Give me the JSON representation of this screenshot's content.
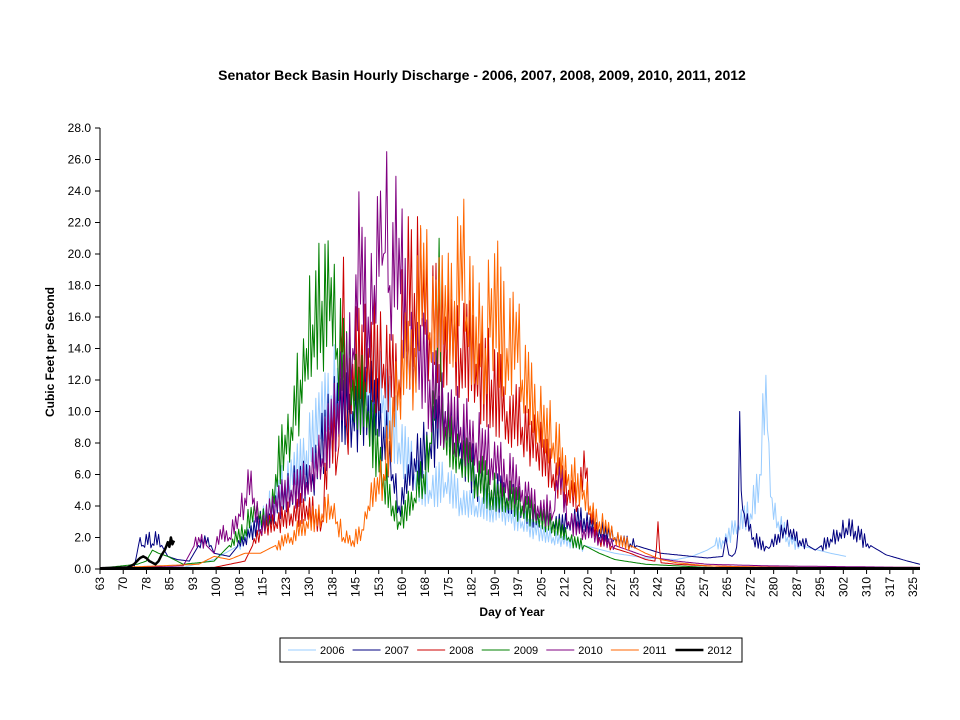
{
  "chart_data": {
    "type": "line",
    "title": "Senator Beck Basin Hourly Discharge - 2006, 2007, 2008, 2009, 2010, 2011, 2012",
    "xlabel": "Day of Year",
    "ylabel": "Cubic Feet per Second",
    "xlim": [
      63,
      329
    ],
    "ylim": [
      0,
      28
    ],
    "x_ticks": [
      "63",
      "70",
      "78",
      "85",
      "93",
      "100",
      "108",
      "115",
      "123",
      "130",
      "138",
      "145",
      "153",
      "160",
      "168",
      "175",
      "182",
      "190",
      "197",
      "205",
      "212",
      "220",
      "227",
      "235",
      "242",
      "250",
      "257",
      "265",
      "272",
      "280",
      "287",
      "295",
      "302",
      "310",
      "317",
      "325"
    ],
    "y_ticks": [
      "0.0",
      "2.0",
      "4.0",
      "6.0",
      "8.0",
      "10.0",
      "12.0",
      "14.0",
      "16.0",
      "18.0",
      "20.0",
      "22.0",
      "24.0",
      "26.0",
      "28.0"
    ],
    "grid": false,
    "legend_position": "bottom",
    "series": [
      {
        "name": "2006",
        "color": "#99ccff",
        "width": 1,
        "x": [
          63,
          90,
          100,
          108,
          115,
          123,
          130,
          138,
          145,
          150,
          155,
          160,
          165,
          170,
          175,
          180,
          185,
          190,
          200,
          210,
          220,
          230,
          240,
          250,
          255,
          260,
          265,
          270,
          274,
          277,
          279,
          280,
          281,
          283,
          286,
          290,
          300,
          305
        ],
        "y": [
          0.05,
          0.1,
          0.6,
          1.5,
          3.0,
          5.5,
          7.5,
          11.0,
          12.5,
          13.0,
          11.0,
          8.0,
          6.0,
          5.0,
          5.5,
          4.5,
          4.0,
          4.0,
          3.0,
          2.0,
          1.5,
          1.0,
          0.7,
          0.6,
          0.8,
          1.2,
          1.8,
          2.8,
          3.5,
          6.0,
          12.3,
          8.0,
          4.5,
          3.0,
          2.0,
          1.5,
          1.0,
          0.8
        ]
      },
      {
        "name": "2007",
        "color": "#000080",
        "width": 1,
        "x": [
          63,
          74,
          75,
          76,
          77,
          78,
          80,
          82,
          83,
          85,
          88,
          92,
          95,
          98,
          100,
          105,
          110,
          118,
          125,
          132,
          138,
          145,
          150,
          155,
          158,
          160,
          165,
          170,
          175,
          180,
          185,
          190,
          195,
          200,
          205,
          210,
          215,
          220,
          225,
          230,
          235,
          240,
          245,
          250,
          255,
          260,
          265,
          266,
          267,
          268,
          269,
          270,
          270.5,
          271,
          272,
          275,
          280,
          283,
          285,
          287,
          290,
          295,
          300,
          303,
          305,
          308,
          312,
          318,
          325,
          329
        ],
        "y": [
          0.05,
          0.05,
          1.0,
          2.0,
          1.5,
          2.2,
          1.6,
          2.2,
          1.5,
          0.8,
          0.6,
          0.5,
          1.5,
          2.0,
          1.0,
          0.8,
          2.0,
          3.5,
          5.0,
          6.0,
          9.5,
          10.0,
          11.0,
          9.0,
          6.0,
          4.0,
          7.0,
          8.0,
          10.0,
          8.0,
          6.0,
          5.0,
          4.5,
          4.0,
          3.5,
          3.0,
          3.0,
          3.2,
          2.5,
          2.0,
          1.6,
          1.3,
          1.0,
          0.9,
          0.8,
          0.7,
          0.8,
          2.0,
          0.9,
          0.8,
          1.0,
          2.5,
          10.0,
          5.0,
          3.5,
          2.0,
          1.3,
          2.2,
          2.6,
          2.5,
          1.8,
          1.2,
          1.9,
          2.3,
          2.6,
          2.4,
          1.6,
          0.9,
          0.5,
          0.3
        ]
      },
      {
        "name": "2008",
        "color": "#cc0000",
        "width": 1,
        "x": [
          63,
          100,
          110,
          115,
          120,
          125,
          130,
          135,
          138,
          140,
          142,
          143,
          145,
          150,
          155,
          160,
          162,
          165,
          168,
          170,
          175,
          180,
          185,
          190,
          195,
          200,
          205,
          210,
          215,
          218,
          220,
          222,
          225,
          230,
          235,
          240,
          243,
          244,
          245,
          250,
          260,
          270,
          290,
          329
        ],
        "y": [
          0.05,
          0.1,
          0.5,
          2.5,
          3.0,
          3.5,
          4.0,
          3.0,
          10.0,
          7.0,
          19.8,
          9.0,
          13.0,
          14.0,
          13.0,
          12.0,
          18.0,
          17.5,
          19.0,
          15.0,
          16.0,
          14.0,
          13.0,
          12.0,
          10.0,
          9.0,
          8.0,
          6.0,
          5.0,
          4.0,
          7.5,
          3.5,
          2.0,
          1.3,
          1.0,
          0.6,
          0.5,
          3.0,
          0.4,
          0.3,
          0.2,
          0.15,
          0.1,
          0.1
        ]
      },
      {
        "name": "2009",
        "color": "#008000",
        "width": 1,
        "x": [
          63,
          75,
          78,
          80,
          82,
          85,
          90,
          100,
          105,
          110,
          113,
          115,
          118,
          120,
          123,
          125,
          128,
          130,
          132,
          135,
          138,
          140,
          145,
          150,
          155,
          158,
          160,
          165,
          168,
          170,
          172,
          173,
          174,
          175,
          178,
          180,
          185,
          190,
          195,
          200,
          205,
          210,
          215,
          220,
          225,
          230,
          240,
          250,
          260,
          280,
          300,
          329
        ],
        "y": [
          0.05,
          0.3,
          0.5,
          1.2,
          1.0,
          0.8,
          0.3,
          0.5,
          1.5,
          2.5,
          4.0,
          3.5,
          3.0,
          6.0,
          8.5,
          9.0,
          12.0,
          14.0,
          15.5,
          17.0,
          18.5,
          14.0,
          12.0,
          10.0,
          6.0,
          4.0,
          3.0,
          4.5,
          6.0,
          8.0,
          12.0,
          21.0,
          10.0,
          9.0,
          8.0,
          7.0,
          6.0,
          5.0,
          4.5,
          4.0,
          3.5,
          3.0,
          2.0,
          1.5,
          1.0,
          0.6,
          0.3,
          0.2,
          0.1,
          0.08,
          0.05,
          0.05
        ]
      },
      {
        "name": "2010",
        "color": "#800080",
        "width": 1,
        "x": [
          63,
          90,
          95,
          100,
          102,
          105,
          108,
          110,
          111,
          113,
          115,
          120,
          125,
          130,
          135,
          140,
          145,
          148,
          150,
          152,
          154,
          155,
          156,
          157,
          158,
          160,
          163,
          165,
          170,
          175,
          180,
          185,
          190,
          195,
          200,
          205,
          210,
          212,
          215,
          220,
          225,
          230,
          240,
          250,
          260,
          280,
          329
        ],
        "y": [
          0.05,
          0.2,
          2.0,
          1.0,
          2.5,
          2.0,
          3.5,
          4.5,
          6.3,
          4.5,
          2.5,
          4.5,
          5.0,
          5.5,
          7.0,
          10.5,
          14.0,
          21.7,
          16.0,
          18.0,
          24.0,
          20.0,
          26.5,
          18.0,
          22.0,
          21.0,
          15.0,
          14.0,
          12.0,
          10.0,
          9.0,
          8.0,
          7.0,
          6.0,
          5.0,
          4.0,
          3.5,
          6.5,
          3.0,
          2.5,
          2.0,
          1.5,
          0.8,
          0.5,
          0.3,
          0.2,
          0.1
        ]
      },
      {
        "name": "2011",
        "color": "#ff6600",
        "width": 1,
        "x": [
          63,
          95,
          100,
          105,
          110,
          115,
          120,
          125,
          130,
          135,
          138,
          140,
          142,
          145,
          148,
          150,
          155,
          160,
          165,
          168,
          170,
          175,
          178,
          180,
          182,
          185,
          188,
          190,
          195,
          198,
          200,
          205,
          210,
          215,
          220,
          222,
          225,
          230,
          235,
          240,
          245,
          250,
          260,
          280,
          329
        ],
        "y": [
          0.05,
          0.3,
          0.8,
          0.6,
          1.0,
          1.0,
          1.5,
          2.0,
          3.0,
          3.5,
          4.0,
          3.0,
          2.0,
          1.8,
          2.5,
          4.0,
          6.0,
          12.0,
          14.0,
          20.7,
          15.0,
          18.0,
          17.0,
          21.8,
          16.0,
          16.0,
          14.0,
          17.8,
          14.0,
          16.3,
          12.0,
          10.0,
          8.0,
          6.0,
          5.0,
          4.0,
          3.0,
          2.0,
          1.5,
          1.0,
          0.6,
          0.4,
          0.2,
          0.1,
          0.05
        ]
      },
      {
        "name": "2012",
        "color": "#000000",
        "width": 2.5,
        "x": [
          63,
          72,
          74,
          75,
          76,
          77,
          78,
          79,
          80,
          81,
          82,
          83,
          84,
          85,
          86,
          87
        ],
        "y": [
          0.05,
          0.1,
          0.3,
          0.5,
          0.7,
          0.8,
          0.7,
          0.5,
          0.4,
          0.3,
          0.5,
          0.9,
          1.2,
          1.7,
          2.0,
          1.8
        ]
      }
    ]
  }
}
